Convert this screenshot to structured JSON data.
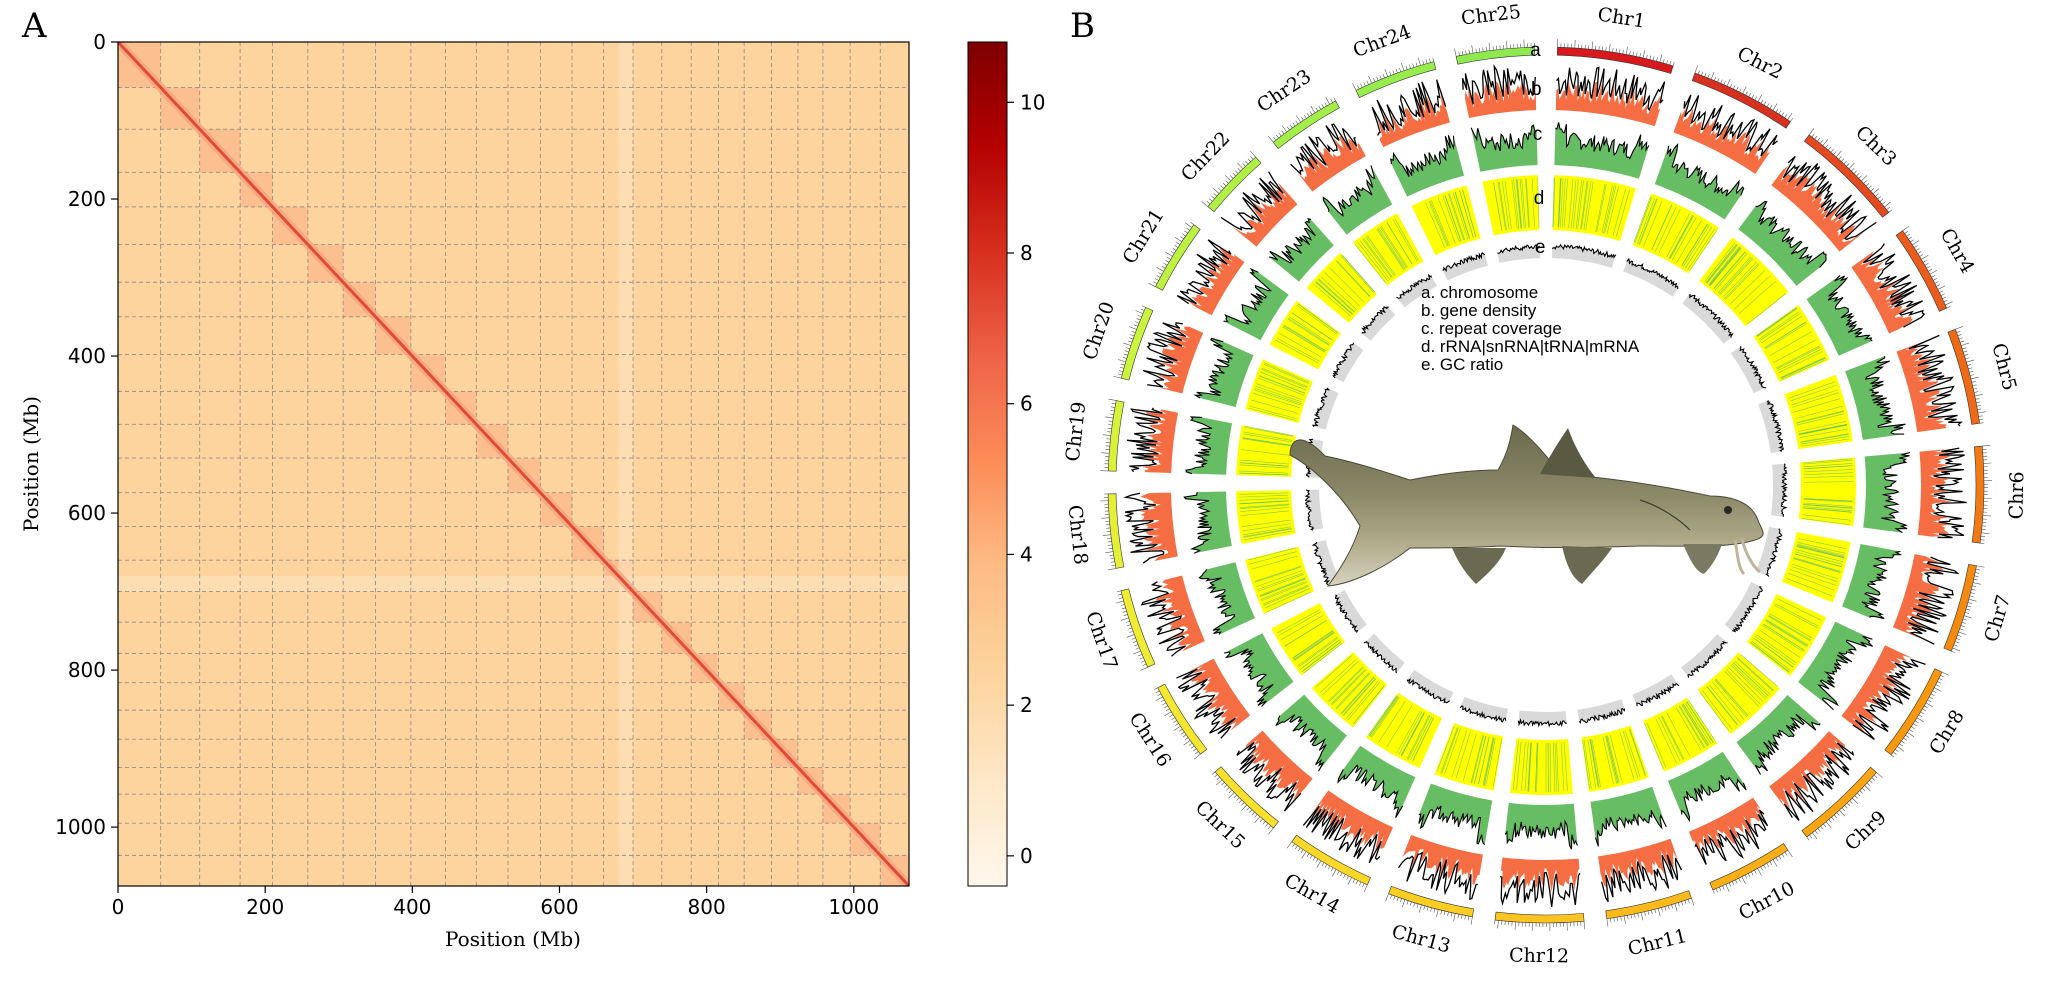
{
  "panel_a": {
    "label": "A",
    "xlabel": "Position (Mb)",
    "ylabel": "Position (Mb)",
    "x_ticks": [
      "0",
      "200",
      "400",
      "600",
      "800",
      "1000"
    ],
    "y_ticks": [
      "0",
      "200",
      "400",
      "600",
      "800",
      "1000"
    ],
    "colorbar_ticks": [
      "0",
      "2",
      "4",
      "6",
      "8",
      "10"
    ]
  },
  "panel_b": {
    "label": "B",
    "track_letters": [
      "a",
      "b",
      "c",
      "d",
      "e"
    ],
    "legend": [
      "a. chromosome",
      "b. gene density",
      "c. repeat coverage",
      "d. rRNA|snRNA|tRNA|mRNA",
      "e. GC ratio"
    ]
  },
  "chart_data": [
    {
      "type": "heatmap",
      "title": "",
      "xlabel": "Position (Mb)",
      "ylabel": "Position (Mb)",
      "xlim": [
        0,
        1075
      ],
      "ylim": [
        1075,
        0
      ],
      "x_ticks": [
        0,
        200,
        400,
        600,
        800,
        1000
      ],
      "y_ticks": [
        0,
        200,
        400,
        600,
        800,
        1000
      ],
      "colorbar": {
        "range": [
          -0.4,
          10.8
        ],
        "ticks": [
          0,
          2,
          4,
          6,
          8,
          10
        ],
        "colormap": "OrRd"
      },
      "chromosome_boundaries_mb": [
        0,
        58,
        111,
        166,
        210,
        258,
        306,
        350,
        398,
        445,
        487,
        530,
        574,
        617,
        660,
        700,
        739,
        779,
        816,
        851,
        888,
        924,
        958,
        995,
        1036,
        1075
      ],
      "grid": true,
      "colors": {
        "background": "#fdd49e",
        "block": "#fcbd8d",
        "diagonal": "#e34a33",
        "colorbar_top": "#7f0000"
      }
    },
    {
      "type": "circos",
      "chromosomes": [
        "Chr1",
        "Chr2",
        "Chr3",
        "Chr4",
        "Chr5",
        "Chr6",
        "Chr7",
        "Chr8",
        "Chr9",
        "Chr10",
        "Chr11",
        "Chr12",
        "Chr13",
        "Chr14",
        "Chr15",
        "Chr16",
        "Chr17",
        "Chr18",
        "Chr19",
        "Chr20",
        "Chr21",
        "Chr22",
        "Chr23",
        "Chr24",
        "Chr25"
      ],
      "chromosome_sizes_mb": [
        58,
        53,
        55,
        44,
        48,
        48,
        44,
        48,
        47,
        42,
        43,
        44,
        43,
        43,
        40,
        39,
        40,
        37,
        35,
        37,
        36,
        34,
        37,
        41,
        39
      ],
      "chromosome_colors": [
        "#d7191c",
        "#d7301f",
        "#e34a1f",
        "#ea5b1c",
        "#ef6a17",
        "#f27a12",
        "#f58a10",
        "#f7980f",
        "#f9a512",
        "#faaf16",
        "#fbba1a",
        "#fcc41e",
        "#fcce22",
        "#fbd727",
        "#f9e02b",
        "#f5e72f",
        "#eeed33",
        "#e4f036",
        "#d8f23a",
        "#cbf23d",
        "#bdf241",
        "#b0f045",
        "#a3ee48",
        "#98ec4b",
        "#8fea4e"
      ],
      "tracks": [
        "chromosome",
        "gene density",
        "repeat coverage",
        "rRNA|snRNA|tRNA|mRNA",
        "GC ratio"
      ],
      "track_colors": {
        "gene_density": "#f46d43",
        "repeat_coverage": "#66bd63",
        "ncRNA": "#ffff00",
        "gc_ratio": "#d9d9d9"
      }
    }
  ]
}
